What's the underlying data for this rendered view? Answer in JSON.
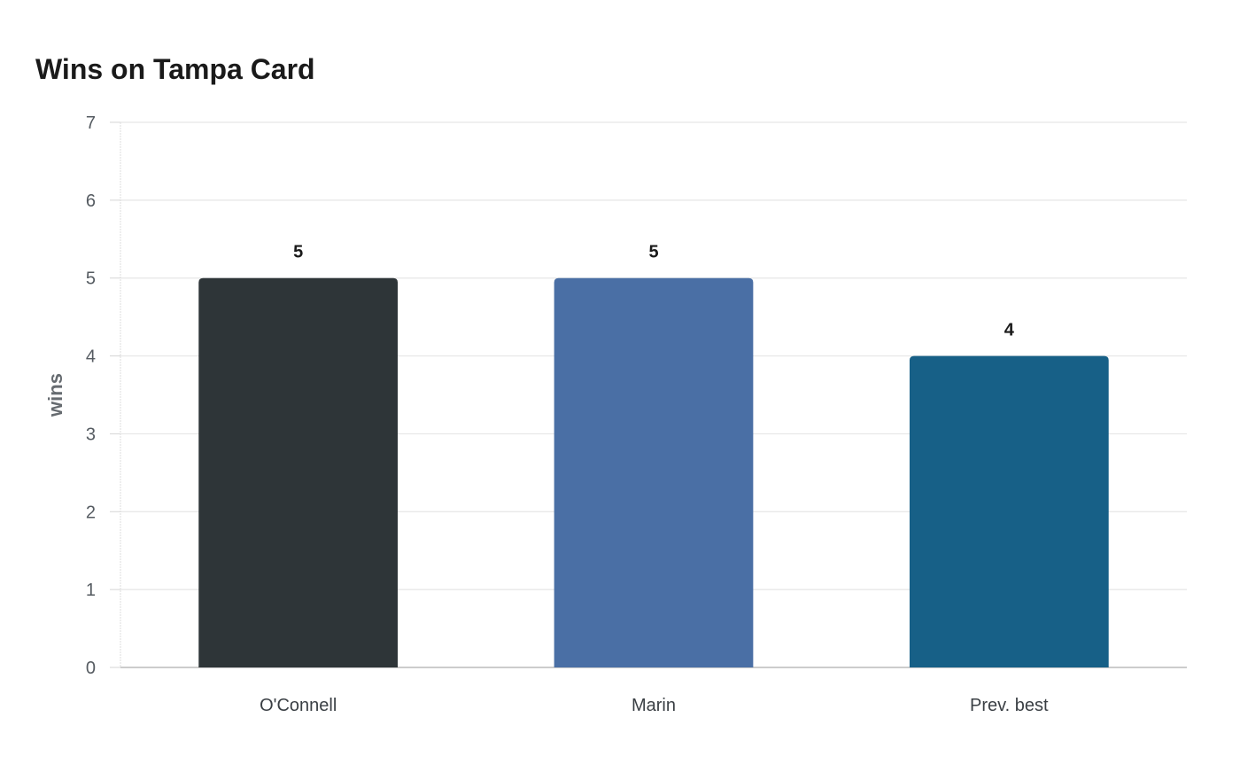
{
  "chart_data": {
    "type": "bar",
    "title": "Wins on Tampa Card",
    "xlabel": "",
    "ylabel": "wins",
    "categories": [
      "O'Connell",
      "Marin",
      "Prev. best"
    ],
    "values": [
      5,
      5,
      4
    ],
    "value_labels": [
      "5",
      "5",
      "4"
    ],
    "colors": [
      "#2e3538",
      "#4a6fa5",
      "#176087"
    ],
    "ylim": [
      0,
      7
    ],
    "yticks": [
      0,
      1,
      2,
      3,
      4,
      5,
      6,
      7
    ],
    "grid": true,
    "legend": "none"
  }
}
